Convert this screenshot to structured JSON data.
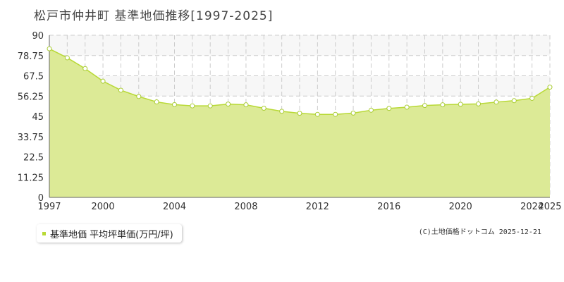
{
  "title": "松戸市仲井町  基準地価推移[1997-2025]",
  "legend": {
    "label": "基準地価 平均坪単価(万円/坪)"
  },
  "credit": "(C)土地価格ドットコム 2025-12-21",
  "colors": {
    "area": "#dcea96",
    "line": "#b8d935",
    "band": "#f7f7f7",
    "grid": "#cccccc",
    "point_stroke": "#a9cc33"
  },
  "chart_data": {
    "type": "area",
    "title": "",
    "xlabel": "",
    "ylabel": "",
    "x": [
      1997,
      1998,
      1999,
      2000,
      2001,
      2002,
      2003,
      2004,
      2005,
      2006,
      2007,
      2008,
      2009,
      2010,
      2011,
      2012,
      2013,
      2014,
      2015,
      2016,
      2017,
      2018,
      2019,
      2020,
      2021,
      2022,
      2023,
      2024,
      2025
    ],
    "series": [
      {
        "name": "基準地価 平均坪単価(万円/坪)",
        "values": [
          82.5,
          77.5,
          71.5,
          64.5,
          59.5,
          56.0,
          53.0,
          51.5,
          50.8,
          50.8,
          51.8,
          51.4,
          49.5,
          47.8,
          46.7,
          46.1,
          46.1,
          46.8,
          48.4,
          49.4,
          50.1,
          51.0,
          51.4,
          51.7,
          51.9,
          52.9,
          53.7,
          55.0,
          61.2
        ]
      }
    ],
    "ylim": [
      0,
      90
    ],
    "yticks": [
      "0",
      "11.25",
      "22.5",
      "33.75",
      "45",
      "56.25",
      "67.5",
      "78.75",
      "90"
    ],
    "xticks": [
      "1997",
      "2000",
      "2004",
      "2008",
      "2012",
      "2016",
      "2020",
      "2024",
      "2025"
    ],
    "grid": true,
    "legend_position": "bottom-left"
  }
}
